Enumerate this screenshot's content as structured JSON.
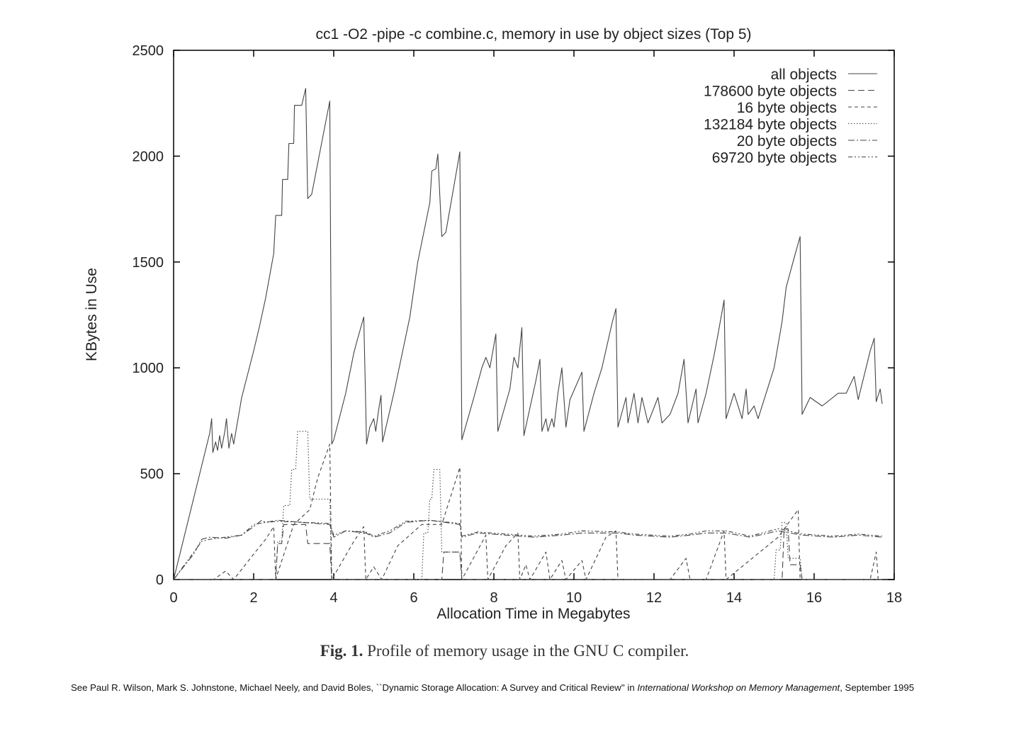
{
  "chart_data": {
    "type": "line",
    "title": "cc1 -O2 -pipe -c combine.c, memory in use by object sizes (Top 5)",
    "xlabel": "Allocation Time in Megabytes",
    "ylabel": "KBytes in Use",
    "xlim": [
      0,
      18
    ],
    "ylim": [
      0,
      2500
    ],
    "x_ticks": [
      "0",
      "2",
      "4",
      "6",
      "8",
      "10",
      "12",
      "14",
      "16",
      "18"
    ],
    "y_ticks": [
      "0",
      "500",
      "1000",
      "1500",
      "2000",
      "2500"
    ],
    "legend_position": "top-right",
    "grid": false,
    "series": [
      {
        "name": "all objects",
        "dash": "none",
        "points": [
          [
            0,
            0
          ],
          [
            0.9,
            690
          ],
          [
            0.95,
            760
          ],
          [
            0.98,
            600
          ],
          [
            1.05,
            650
          ],
          [
            1.1,
            610
          ],
          [
            1.15,
            680
          ],
          [
            1.2,
            620
          ],
          [
            1.28,
            700
          ],
          [
            1.32,
            760
          ],
          [
            1.38,
            620
          ],
          [
            1.45,
            690
          ],
          [
            1.5,
            640
          ],
          [
            1.7,
            860
          ],
          [
            2.0,
            1080
          ],
          [
            2.15,
            1200
          ],
          [
            2.3,
            1330
          ],
          [
            2.5,
            1540
          ],
          [
            2.55,
            1720
          ],
          [
            2.7,
            1720
          ],
          [
            2.72,
            1890
          ],
          [
            2.85,
            1890
          ],
          [
            2.88,
            2060
          ],
          [
            3.0,
            2060
          ],
          [
            3.02,
            2240
          ],
          [
            3.2,
            2240
          ],
          [
            3.3,
            2320
          ],
          [
            3.35,
            1800
          ],
          [
            3.45,
            1820
          ],
          [
            3.9,
            2260
          ],
          [
            3.95,
            640
          ],
          [
            4.0,
            660
          ],
          [
            4.3,
            880
          ],
          [
            4.5,
            1070
          ],
          [
            4.6,
            1140
          ],
          [
            4.75,
            1240
          ],
          [
            4.82,
            640
          ],
          [
            4.9,
            720
          ],
          [
            5.0,
            760
          ],
          [
            5.05,
            700
          ],
          [
            5.12,
            800
          ],
          [
            5.18,
            870
          ],
          [
            5.22,
            650
          ],
          [
            5.5,
            880
          ],
          [
            5.9,
            1240
          ],
          [
            6.1,
            1500
          ],
          [
            6.4,
            1780
          ],
          [
            6.45,
            1930
          ],
          [
            6.55,
            1940
          ],
          [
            6.6,
            2010
          ],
          [
            6.7,
            1620
          ],
          [
            6.8,
            1640
          ],
          [
            7.15,
            2020
          ],
          [
            7.2,
            660
          ],
          [
            7.5,
            860
          ],
          [
            7.7,
            1000
          ],
          [
            7.8,
            1050
          ],
          [
            7.9,
            1000
          ],
          [
            8.05,
            1160
          ],
          [
            8.1,
            700
          ],
          [
            8.4,
            900
          ],
          [
            8.5,
            1050
          ],
          [
            8.6,
            1000
          ],
          [
            8.7,
            1190
          ],
          [
            8.75,
            680
          ],
          [
            9.05,
            940
          ],
          [
            9.15,
            1040
          ],
          [
            9.2,
            700
          ],
          [
            9.3,
            760
          ],
          [
            9.35,
            700
          ],
          [
            9.45,
            760
          ],
          [
            9.5,
            720
          ],
          [
            9.6,
            880
          ],
          [
            9.7,
            1000
          ],
          [
            9.8,
            720
          ],
          [
            9.9,
            850
          ],
          [
            10.2,
            980
          ],
          [
            10.25,
            700
          ],
          [
            10.5,
            880
          ],
          [
            10.7,
            1000
          ],
          [
            10.95,
            1210
          ],
          [
            11.05,
            1280
          ],
          [
            11.1,
            720
          ],
          [
            11.3,
            860
          ],
          [
            11.35,
            740
          ],
          [
            11.5,
            880
          ],
          [
            11.6,
            740
          ],
          [
            11.7,
            860
          ],
          [
            11.85,
            740
          ],
          [
            12.1,
            860
          ],
          [
            12.2,
            740
          ],
          [
            12.4,
            780
          ],
          [
            12.6,
            880
          ],
          [
            12.75,
            1040
          ],
          [
            12.85,
            740
          ],
          [
            13.05,
            900
          ],
          [
            13.1,
            740
          ],
          [
            13.3,
            880
          ],
          [
            13.5,
            1060
          ],
          [
            13.6,
            1160
          ],
          [
            13.75,
            1320
          ],
          [
            13.8,
            760
          ],
          [
            14.0,
            880
          ],
          [
            14.2,
            760
          ],
          [
            14.3,
            900
          ],
          [
            14.35,
            780
          ],
          [
            14.5,
            820
          ],
          [
            14.6,
            760
          ],
          [
            15.0,
            1000
          ],
          [
            15.2,
            1220
          ],
          [
            15.3,
            1380
          ],
          [
            15.5,
            1520
          ],
          [
            15.65,
            1620
          ],
          [
            15.7,
            780
          ],
          [
            15.9,
            860
          ],
          [
            16.2,
            820
          ],
          [
            16.6,
            880
          ],
          [
            16.8,
            880
          ],
          [
            17.0,
            960
          ],
          [
            17.1,
            850
          ],
          [
            17.4,
            1080
          ],
          [
            17.5,
            1140
          ],
          [
            17.55,
            840
          ],
          [
            17.65,
            900
          ],
          [
            17.7,
            830
          ]
        ]
      },
      {
        "name": "178600 byte objects",
        "dash": "9 5",
        "points": [
          [
            0,
            0
          ],
          [
            2.55,
            0
          ],
          [
            2.6,
            170
          ],
          [
            2.7,
            170
          ],
          [
            2.75,
            260
          ],
          [
            3.3,
            260
          ],
          [
            3.35,
            170
          ],
          [
            3.9,
            170
          ],
          [
            3.95,
            0
          ],
          [
            6.7,
            0
          ],
          [
            6.75,
            130
          ],
          [
            7.15,
            130
          ],
          [
            7.2,
            0
          ],
          [
            15.2,
            0
          ],
          [
            15.25,
            240
          ],
          [
            15.35,
            240
          ],
          [
            15.4,
            70
          ],
          [
            15.65,
            70
          ],
          [
            15.7,
            0
          ],
          [
            17.7,
            0
          ]
        ]
      },
      {
        "name": "16 byte objects",
        "dash": "5 4",
        "points": [
          [
            0,
            0
          ],
          [
            1.0,
            0
          ],
          [
            1.3,
            40
          ],
          [
            1.5,
            0
          ],
          [
            2.0,
            120
          ],
          [
            2.3,
            190
          ],
          [
            2.5,
            250
          ],
          [
            2.55,
            0
          ],
          [
            2.6,
            30
          ],
          [
            3.0,
            260
          ],
          [
            3.4,
            330
          ],
          [
            3.6,
            480
          ],
          [
            3.9,
            640
          ],
          [
            3.95,
            0
          ],
          [
            4.5,
            180
          ],
          [
            4.75,
            250
          ],
          [
            4.8,
            0
          ],
          [
            5.0,
            60
          ],
          [
            5.2,
            0
          ],
          [
            5.6,
            160
          ],
          [
            6.2,
            260
          ],
          [
            6.7,
            260
          ],
          [
            7.15,
            530
          ],
          [
            7.2,
            0
          ],
          [
            7.6,
            140
          ],
          [
            7.8,
            210
          ],
          [
            7.85,
            0
          ],
          [
            8.3,
            160
          ],
          [
            8.6,
            220
          ],
          [
            8.65,
            0
          ],
          [
            8.8,
            70
          ],
          [
            8.9,
            0
          ],
          [
            9.3,
            130
          ],
          [
            9.4,
            0
          ],
          [
            9.7,
            90
          ],
          [
            9.8,
            0
          ],
          [
            10.2,
            90
          ],
          [
            10.3,
            0
          ],
          [
            10.8,
            200
          ],
          [
            11.05,
            230
          ],
          [
            11.1,
            0
          ],
          [
            12.4,
            0
          ],
          [
            12.8,
            100
          ],
          [
            12.9,
            0
          ],
          [
            13.3,
            0
          ],
          [
            13.75,
            230
          ],
          [
            13.8,
            0
          ],
          [
            15.1,
            200
          ],
          [
            15.6,
            330
          ],
          [
            15.65,
            0
          ],
          [
            17.4,
            0
          ],
          [
            17.55,
            130
          ],
          [
            17.6,
            0
          ]
        ]
      },
      {
        "name": "132184 byte objects",
        "dash": "1.5 2.5",
        "points": [
          [
            0,
            0
          ],
          [
            2.55,
            0
          ],
          [
            2.6,
            180
          ],
          [
            2.7,
            180
          ],
          [
            2.75,
            350
          ],
          [
            2.9,
            350
          ],
          [
            2.95,
            520
          ],
          [
            3.05,
            520
          ],
          [
            3.1,
            700
          ],
          [
            3.35,
            700
          ],
          [
            3.4,
            380
          ],
          [
            3.9,
            380
          ],
          [
            3.95,
            0
          ],
          [
            6.2,
            0
          ],
          [
            6.25,
            220
          ],
          [
            6.35,
            220
          ],
          [
            6.4,
            380
          ],
          [
            6.45,
            380
          ],
          [
            6.5,
            520
          ],
          [
            6.65,
            520
          ],
          [
            6.7,
            130
          ],
          [
            7.15,
            130
          ],
          [
            7.2,
            0
          ],
          [
            15.0,
            0
          ],
          [
            15.05,
            140
          ],
          [
            15.15,
            140
          ],
          [
            15.2,
            270
          ],
          [
            15.3,
            270
          ],
          [
            15.35,
            100
          ],
          [
            15.65,
            100
          ],
          [
            15.7,
            0
          ],
          [
            17.7,
            0
          ]
        ]
      },
      {
        "name": "20 byte objects",
        "dash": "9 3 2 3",
        "points": [
          [
            0,
            0
          ],
          [
            0.5,
            120
          ],
          [
            0.7,
            190
          ],
          [
            0.9,
            200
          ],
          [
            1.3,
            195
          ],
          [
            1.7,
            210
          ],
          [
            2.0,
            250
          ],
          [
            2.2,
            280
          ],
          [
            2.3,
            270
          ],
          [
            2.6,
            280
          ],
          [
            3.2,
            270
          ],
          [
            3.9,
            260
          ],
          [
            4.0,
            200
          ],
          [
            4.3,
            230
          ],
          [
            4.8,
            220
          ],
          [
            5.0,
            200
          ],
          [
            5.4,
            220
          ],
          [
            5.8,
            270
          ],
          [
            6.4,
            280
          ],
          [
            7.15,
            260
          ],
          [
            7.2,
            200
          ],
          [
            7.6,
            220
          ],
          [
            8.3,
            210
          ],
          [
            9.0,
            200
          ],
          [
            9.7,
            210
          ],
          [
            10.2,
            220
          ],
          [
            11.1,
            220
          ],
          [
            11.5,
            210
          ],
          [
            12.4,
            200
          ],
          [
            12.9,
            210
          ],
          [
            13.3,
            220
          ],
          [
            13.8,
            220
          ],
          [
            14.4,
            200
          ],
          [
            15.1,
            230
          ],
          [
            15.7,
            210
          ],
          [
            16.5,
            200
          ],
          [
            17.1,
            210
          ],
          [
            17.7,
            200
          ]
        ]
      },
      {
        "name": "69720 byte objects",
        "dash": "6 3 2 3 2 3",
        "points": [
          [
            0,
            0
          ],
          [
            0.7,
            180
          ],
          [
            0.9,
            190
          ],
          [
            1.3,
            200
          ],
          [
            1.7,
            210
          ],
          [
            2.0,
            260
          ],
          [
            2.3,
            270
          ],
          [
            2.6,
            275
          ],
          [
            3.9,
            265
          ],
          [
            4.0,
            210
          ],
          [
            4.3,
            230
          ],
          [
            4.8,
            225
          ],
          [
            5.0,
            205
          ],
          [
            5.4,
            230
          ],
          [
            5.8,
            275
          ],
          [
            6.4,
            280
          ],
          [
            7.15,
            265
          ],
          [
            7.2,
            205
          ],
          [
            7.6,
            225
          ],
          [
            8.3,
            215
          ],
          [
            9.0,
            205
          ],
          [
            9.7,
            215
          ],
          [
            10.2,
            230
          ],
          [
            11.1,
            225
          ],
          [
            11.5,
            215
          ],
          [
            12.4,
            205
          ],
          [
            12.9,
            215
          ],
          [
            13.3,
            230
          ],
          [
            13.8,
            230
          ],
          [
            14.4,
            205
          ],
          [
            15.1,
            240
          ],
          [
            15.7,
            215
          ],
          [
            16.5,
            205
          ],
          [
            17.1,
            215
          ],
          [
            17.7,
            205
          ]
        ]
      }
    ]
  },
  "caption": {
    "label": "Fig. 1.",
    "text": "Profile of memory usage in the GNU C compiler."
  },
  "citation": {
    "prefix": "See Paul R. Wilson, Mark S. Johnstone, Michael Neely, and David Boles, ``Dynamic Storage Allocation: A Survey and Critical Review'' in ",
    "venue": "International Workshop on Memory Management",
    "suffix": ", September 1995"
  }
}
